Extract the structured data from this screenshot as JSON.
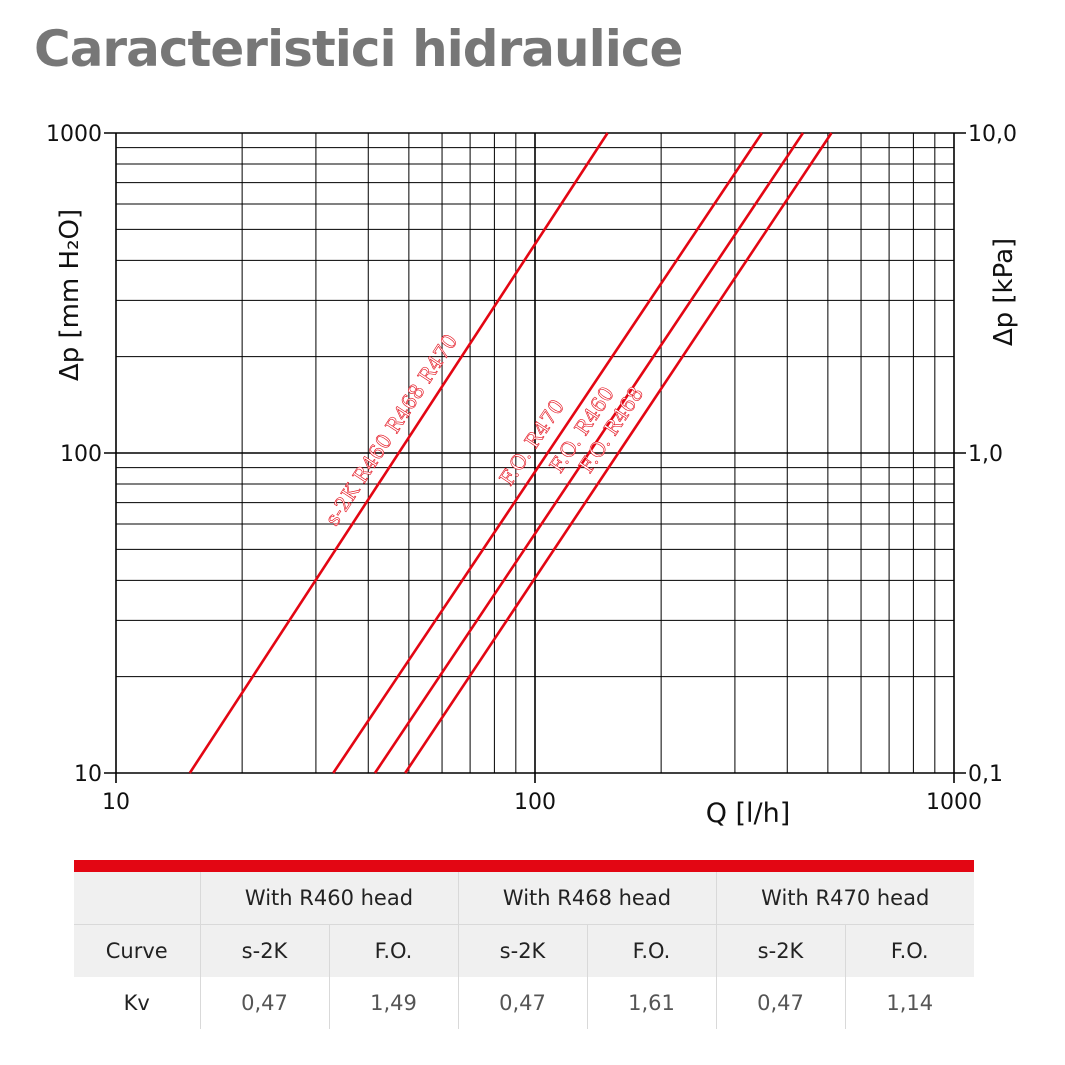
{
  "title": "Caracteristici hidraulice",
  "chart_data": {
    "type": "line",
    "scale": "log-log",
    "grid": true,
    "xlabel": "Q [l/h]",
    "ylabel_left": "Δp [mm H₂O]",
    "ylabel_right": "Δp [kPa]",
    "xlim": [
      10,
      1000
    ],
    "ylim_left": [
      10,
      1000
    ],
    "ylim_right": [
      0.1,
      10.0
    ],
    "x_ticks": [
      "10",
      "100",
      "1000"
    ],
    "y_ticks_left": [
      "10",
      "100",
      "1000"
    ],
    "y_ticks_right": [
      "0,1",
      "1,0",
      "10,0"
    ],
    "line_color": "#e30613",
    "series": [
      {
        "name": "s-2K R460 R468 R470",
        "x": [
          15,
          149
        ],
        "y": [
          10,
          1000
        ]
      },
      {
        "name": "F.O. R470",
        "x": [
          33,
          348
        ],
        "y": [
          10,
          1000
        ]
      },
      {
        "name": "F.O. R460",
        "x": [
          41.5,
          436
        ],
        "y": [
          10,
          1000
        ]
      },
      {
        "name": "F.O. R468",
        "x": [
          49,
          510
        ],
        "y": [
          10,
          1000
        ]
      }
    ]
  },
  "table": {
    "head_groups": [
      "With R460 head",
      "With R468 head",
      "With R470 head"
    ],
    "curve_label": "Curve",
    "curves": [
      "s-2K",
      "F.O.",
      "s-2K",
      "F.O.",
      "s-2K",
      "F.O."
    ],
    "kv_label": "Kv",
    "kv_values": [
      "0,47",
      "1,49",
      "0,47",
      "1,61",
      "0,47",
      "1,14"
    ]
  }
}
